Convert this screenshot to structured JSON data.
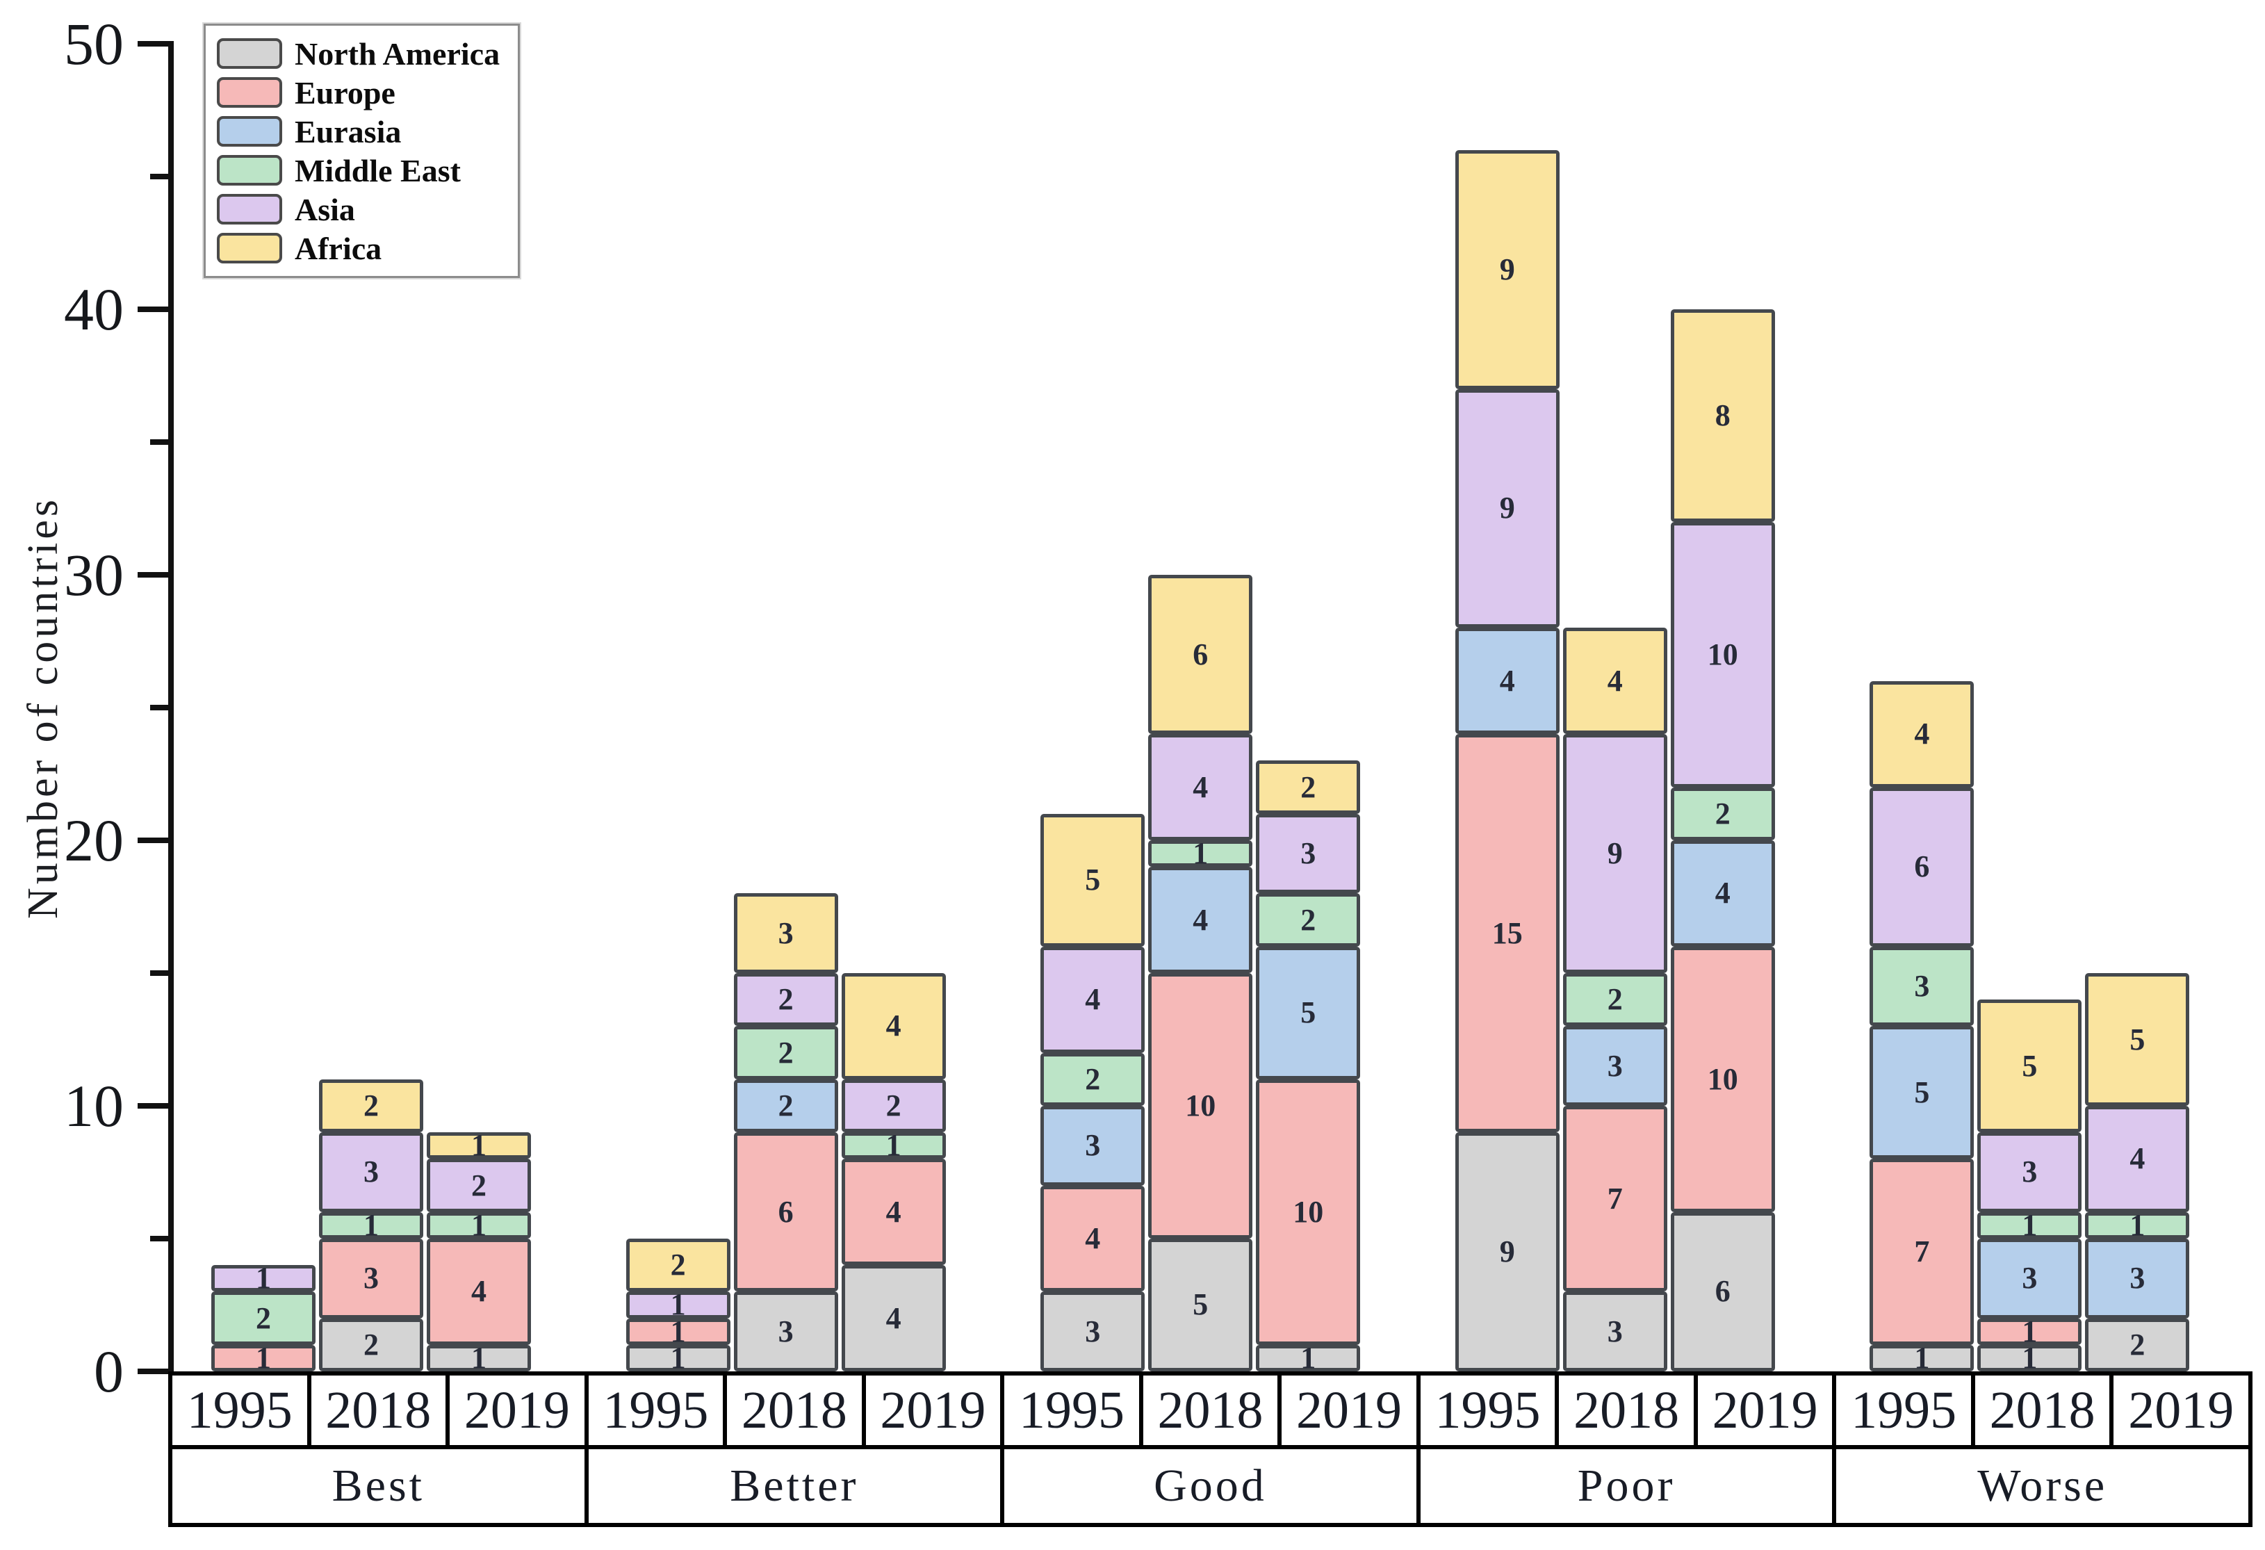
{
  "chart_data": {
    "type": "bar",
    "stacked": true,
    "title": "",
    "xlabel": "",
    "ylabel": "Number of countries",
    "ylim": [
      0,
      50
    ],
    "yticks": [
      0,
      10,
      20,
      30,
      40,
      50
    ],
    "minor_tick_step": 5,
    "grid": false,
    "legend_position": "top-left",
    "groups": [
      "Best",
      "Better",
      "Good",
      "Poor",
      "Worse"
    ],
    "years": [
      "1995",
      "2018",
      "2019"
    ],
    "series": [
      {
        "name": "North America",
        "color": "#d4d4d4",
        "values": {
          "Best": [
            0,
            2,
            1
          ],
          "Better": [
            1,
            3,
            4
          ],
          "Good": [
            3,
            5,
            1
          ],
          "Poor": [
            9,
            3,
            6
          ],
          "Worse": [
            1,
            1,
            2
          ]
        }
      },
      {
        "name": "Europe",
        "color": "#f6b9b8",
        "values": {
          "Best": [
            1,
            3,
            4
          ],
          "Better": [
            1,
            6,
            4
          ],
          "Good": [
            4,
            10,
            10
          ],
          "Poor": [
            15,
            7,
            10
          ],
          "Worse": [
            7,
            1,
            0
          ]
        }
      },
      {
        "name": "Eurasia",
        "color": "#b5cfeb",
        "values": {
          "Best": [
            0,
            0,
            0
          ],
          "Better": [
            0,
            2,
            0
          ],
          "Good": [
            3,
            4,
            5
          ],
          "Poor": [
            4,
            3,
            4
          ],
          "Worse": [
            5,
            3,
            3
          ]
        }
      },
      {
        "name": "Middle East",
        "color": "#bce4c7",
        "values": {
          "Best": [
            2,
            1,
            1
          ],
          "Better": [
            0,
            2,
            1
          ],
          "Good": [
            2,
            1,
            2
          ],
          "Poor": [
            0,
            2,
            2
          ],
          "Worse": [
            3,
            1,
            1
          ]
        }
      },
      {
        "name": "Asia",
        "color": "#dcc8ee",
        "values": {
          "Best": [
            1,
            3,
            2
          ],
          "Better": [
            1,
            2,
            2
          ],
          "Good": [
            4,
            4,
            3
          ],
          "Poor": [
            9,
            9,
            10
          ],
          "Worse": [
            6,
            3,
            4
          ]
        }
      },
      {
        "name": "Africa",
        "color": "#fae49f",
        "values": {
          "Best": [
            0,
            2,
            1
          ],
          "Better": [
            2,
            3,
            4
          ],
          "Good": [
            5,
            6,
            2
          ],
          "Poor": [
            9,
            4,
            8
          ],
          "Worse": [
            4,
            5,
            5
          ]
        }
      }
    ],
    "bar_totals": {
      "Best": [
        4,
        11,
        9
      ],
      "Better": [
        5,
        18,
        15
      ],
      "Good": [
        21,
        30,
        23
      ],
      "Poor": [
        46,
        28,
        40
      ],
      "Worse": [
        26,
        14,
        15
      ]
    }
  },
  "style": {
    "segment_border_color": "#44484d",
    "axis_color": "#111111",
    "label_color": "#272b38"
  }
}
